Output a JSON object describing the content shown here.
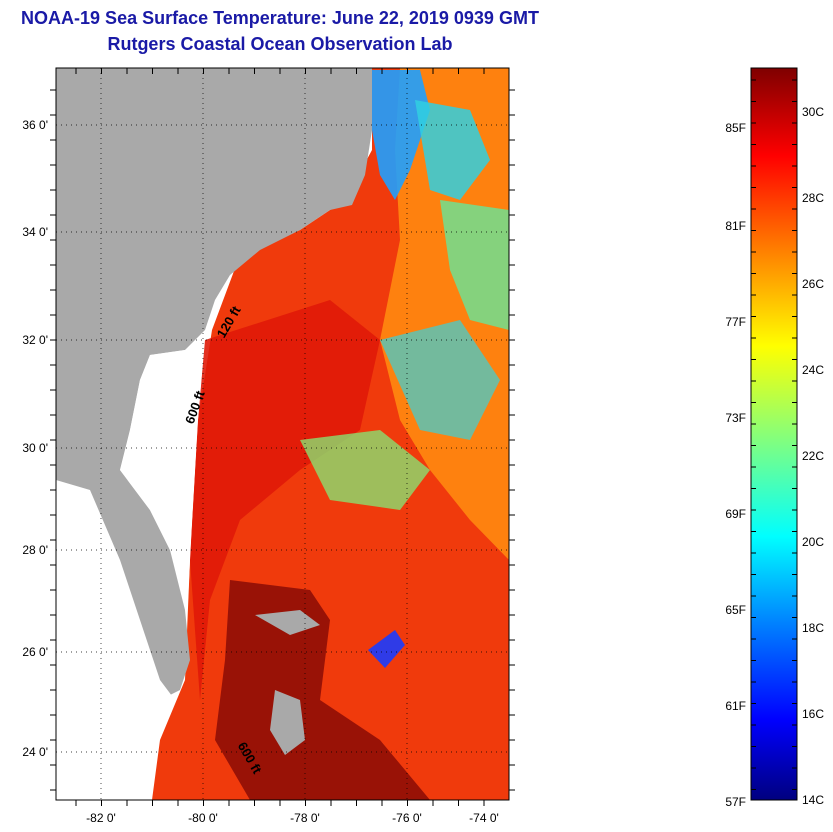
{
  "title": "NOAA-19 Sea Surface Temperature:  June 22, 2019 0939 GMT",
  "subtitle": "Rutgers Coastal Ocean Observation Lab",
  "map": {
    "lon_labels": [
      "-82 0'",
      "-80 0'",
      "-78 0'",
      "-76 0'",
      "-74 0'"
    ],
    "lat_labels": [
      "36 0'",
      "34 0'",
      "32 0'",
      "30 0'",
      "28 0'",
      "26 0'",
      "24 0'"
    ],
    "isobath_labels": [
      "120 ft",
      "600 ft",
      "600 ft"
    ],
    "colors": {
      "land": "#a9a9a9",
      "no_data": "#ffffff",
      "frame": "#000000"
    }
  },
  "colorbar": {
    "fahrenheit_labels": [
      "85F",
      "81F",
      "77F",
      "73F",
      "69F",
      "65F",
      "61F",
      "57F"
    ],
    "celsius_labels": [
      "30C",
      "28C",
      "26C",
      "24C",
      "22C",
      "20C",
      "18C",
      "16C",
      "14C"
    ],
    "stops": [
      "#00007f",
      "#0000ff",
      "#0080ff",
      "#00ffff",
      "#80ff80",
      "#ffff00",
      "#ff8000",
      "#ff0000",
      "#7f0000"
    ]
  }
}
